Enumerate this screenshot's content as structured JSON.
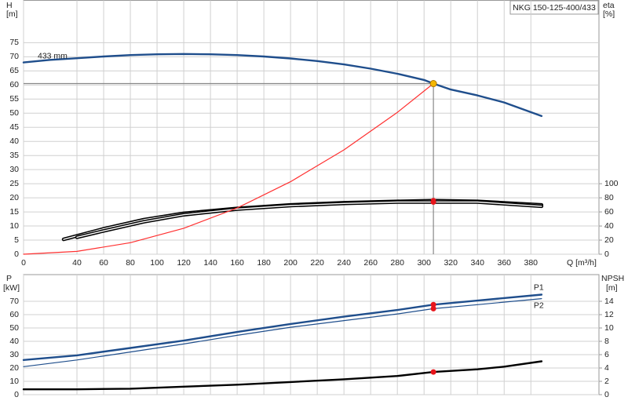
{
  "chart_data": [
    {
      "type": "line",
      "title": "NKG 150-125-400/433",
      "x_label": "Q [m³/h]",
      "y_label": "H",
      "y_unit": "[m]",
      "y2_label": "eta",
      "y2_unit": "[%]",
      "xlim": [
        0,
        431
      ],
      "xticks": [
        0,
        40,
        60,
        80,
        100,
        120,
        140,
        160,
        180,
        200,
        220,
        240,
        260,
        280,
        300,
        320,
        340,
        360,
        380
      ],
      "ylim": [
        0,
        90
      ],
      "yticks": [
        0,
        5,
        10,
        15,
        20,
        25,
        30,
        35,
        40,
        45,
        50,
        55,
        60,
        65,
        70,
        75
      ],
      "y2lim": [
        0,
        360
      ],
      "y2ticks": [
        0,
        20,
        40,
        60,
        80,
        100
      ],
      "grid": true,
      "duty_point": {
        "x": 307,
        "y": 60.5,
        "color": "#f5b800"
      },
      "series": [
        {
          "name": "433 mm",
          "color": "#1f4e8c",
          "x": [
            0,
            20,
            40,
            60,
            80,
            100,
            120,
            140,
            160,
            180,
            200,
            220,
            240,
            260,
            280,
            300,
            307,
            320,
            340,
            360,
            388
          ],
          "values": [
            68,
            68.9,
            69.5,
            70.1,
            70.6,
            70.9,
            71,
            70.9,
            70.6,
            70.1,
            69.4,
            68.5,
            67.3,
            65.8,
            64,
            61.8,
            60.5,
            58.4,
            56.3,
            53.8,
            49
          ]
        },
        {
          "color": "#000000",
          "axis": "y2",
          "double": true,
          "dot": true,
          "x": [
            30,
            40,
            60,
            90,
            120,
            160,
            200,
            240,
            280,
            307,
            340,
            388
          ],
          "values": [
            21,
            26,
            36,
            49,
            58,
            65,
            70,
            73,
            75,
            76,
            75,
            70
          ]
        },
        {
          "color": "#000000",
          "axis": "y2",
          "double": true,
          "dot": true,
          "x": [
            40,
            60,
            90,
            120,
            160,
            200,
            240,
            280,
            307,
            340,
            388
          ],
          "values": [
            24,
            33,
            46,
            56,
            64,
            69,
            72,
            74,
            74,
            74,
            68
          ]
        },
        {
          "color": "#ff3030",
          "thin": true,
          "x": [
            0,
            40,
            80,
            120,
            160,
            200,
            240,
            280,
            307
          ],
          "values": [
            0,
            1,
            4.1,
            9.2,
            16.4,
            25.7,
            37,
            50.3,
            60.5
          ]
        }
      ]
    },
    {
      "type": "line",
      "y_label": "P",
      "y_unit": "[kW]",
      "y2_label": "NPSH",
      "y2_unit": "[m]",
      "ylim": [
        0,
        90
      ],
      "yticks": [
        0,
        10,
        20,
        30,
        40,
        50,
        60,
        70
      ],
      "y2lim": [
        0,
        18
      ],
      "y2ticks": [
        0,
        2,
        4,
        6,
        8,
        10,
        12,
        14
      ],
      "grid": true,
      "duty_point": {
        "x": 307
      },
      "series": [
        {
          "name": "P1",
          "color": "#1f4e8c",
          "dot": true,
          "x": [
            0,
            40,
            80,
            120,
            160,
            200,
            240,
            280,
            307,
            340,
            388
          ],
          "values": [
            26,
            29.5,
            35,
            40.5,
            47,
            53,
            58.5,
            63.5,
            67.5,
            70.5,
            75
          ]
        },
        {
          "name": "P2",
          "color": "#1f4e8c",
          "thin": true,
          "dot": true,
          "x": [
            0,
            40,
            80,
            120,
            160,
            200,
            240,
            280,
            307,
            340,
            388
          ],
          "values": [
            21,
            26,
            32,
            38,
            44.5,
            50.5,
            55.5,
            60.5,
            64.5,
            67.5,
            72
          ]
        },
        {
          "color": "#000000",
          "axis": "y2",
          "dot": true,
          "x": [
            0,
            40,
            80,
            120,
            160,
            200,
            240,
            280,
            307,
            340,
            360,
            388
          ],
          "values": [
            0.8,
            0.8,
            0.9,
            1.2,
            1.5,
            1.9,
            2.3,
            2.8,
            3.4,
            3.8,
            4.2,
            5
          ]
        }
      ]
    }
  ]
}
